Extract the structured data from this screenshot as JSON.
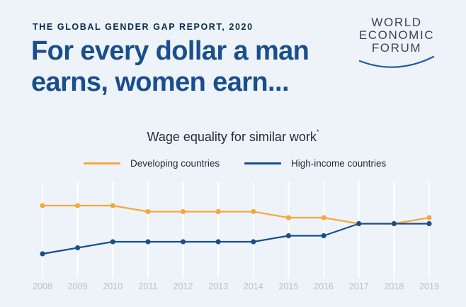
{
  "header": {
    "report_label": "THE GLOBAL GENDER GAP REPORT, 2020",
    "headline": "For every dollar a man earns, women earn..."
  },
  "logo": {
    "line1": "WORLD",
    "line2": "ECONOMIC",
    "line3": "FORUM",
    "color": "#3a4652",
    "arc_color": "#1e5aa8"
  },
  "chart_data": {
    "type": "line",
    "title": "Wage equality for similar work",
    "title_marker": "*",
    "x": [
      "2008",
      "2009",
      "2010",
      "2011",
      "2012",
      "2013",
      "2014",
      "2015",
      "2016",
      "2017",
      "2018",
      "2019"
    ],
    "series": [
      {
        "name": "Developing countries",
        "color": "#f5a93b",
        "values": [
          5.8,
          5.8,
          5.8,
          5.7,
          5.7,
          5.7,
          5.7,
          5.6,
          5.6,
          5.5,
          5.5,
          5.6
        ]
      },
      {
        "name": "High-income countries",
        "color": "#1a4e8c",
        "values": [
          5.0,
          5.1,
          5.2,
          5.2,
          5.2,
          5.2,
          5.2,
          5.3,
          5.3,
          5.5,
          5.5,
          5.5
        ]
      }
    ],
    "ylim": [
      4.6,
      6.2
    ],
    "grid": "vertical",
    "gridline_color": "#ffffff",
    "legend_position": "top-center"
  }
}
